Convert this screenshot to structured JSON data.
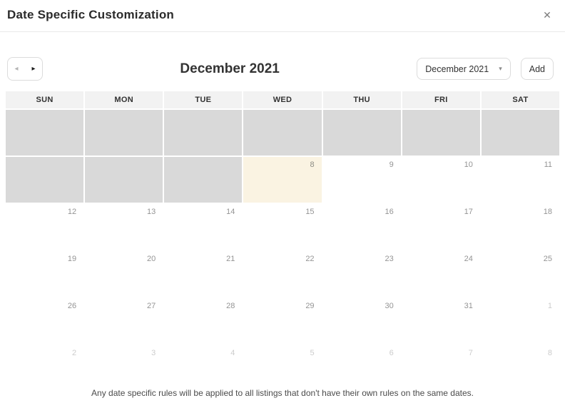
{
  "modal": {
    "title": "Date Specific Customization",
    "close_icon": "✕"
  },
  "toolbar": {
    "prev_icon": "◂",
    "next_icon": "▸",
    "month_title": "December 2021",
    "month_select_value": "December 2021",
    "select_caret": "▾",
    "add_label": "Add"
  },
  "calendar": {
    "day_headers": [
      "SUN",
      "MON",
      "TUE",
      "WED",
      "THU",
      "FRI",
      "SAT"
    ],
    "weeks": [
      [
        {
          "day": "",
          "state": "past"
        },
        {
          "day": "",
          "state": "past"
        },
        {
          "day": "",
          "state": "past"
        },
        {
          "day": "",
          "state": "past"
        },
        {
          "day": "",
          "state": "past"
        },
        {
          "day": "",
          "state": "past"
        },
        {
          "day": "",
          "state": "past"
        }
      ],
      [
        {
          "day": "",
          "state": "past"
        },
        {
          "day": "",
          "state": "past"
        },
        {
          "day": "",
          "state": "past"
        },
        {
          "day": "8",
          "state": "selected"
        },
        {
          "day": "9",
          "state": "current"
        },
        {
          "day": "10",
          "state": "current"
        },
        {
          "day": "11",
          "state": "current"
        }
      ],
      [
        {
          "day": "12",
          "state": "current"
        },
        {
          "day": "13",
          "state": "current"
        },
        {
          "day": "14",
          "state": "current"
        },
        {
          "day": "15",
          "state": "current"
        },
        {
          "day": "16",
          "state": "current"
        },
        {
          "day": "17",
          "state": "current"
        },
        {
          "day": "18",
          "state": "current"
        }
      ],
      [
        {
          "day": "19",
          "state": "current"
        },
        {
          "day": "20",
          "state": "current"
        },
        {
          "day": "21",
          "state": "current"
        },
        {
          "day": "22",
          "state": "current"
        },
        {
          "day": "23",
          "state": "current"
        },
        {
          "day": "24",
          "state": "current"
        },
        {
          "day": "25",
          "state": "current"
        }
      ],
      [
        {
          "day": "26",
          "state": "current"
        },
        {
          "day": "27",
          "state": "current"
        },
        {
          "day": "28",
          "state": "current"
        },
        {
          "day": "29",
          "state": "current"
        },
        {
          "day": "30",
          "state": "current"
        },
        {
          "day": "31",
          "state": "current"
        },
        {
          "day": "1",
          "state": "next"
        }
      ],
      [
        {
          "day": "2",
          "state": "next"
        },
        {
          "day": "3",
          "state": "next"
        },
        {
          "day": "4",
          "state": "next"
        },
        {
          "day": "5",
          "state": "next"
        },
        {
          "day": "6",
          "state": "next"
        },
        {
          "day": "7",
          "state": "next"
        },
        {
          "day": "8",
          "state": "next"
        }
      ]
    ],
    "colors": {
      "past_cell_bg": "#d9d9d9",
      "selected_cell_bg": "#faf3e2",
      "day_header_bg": "#f2f2f2",
      "current_day_text": "#949494",
      "next_month_day_text": "#cccccc"
    }
  },
  "footer": {
    "note": "Any date specific rules will be applied to all listings that don't have their own rules on the same dates."
  }
}
